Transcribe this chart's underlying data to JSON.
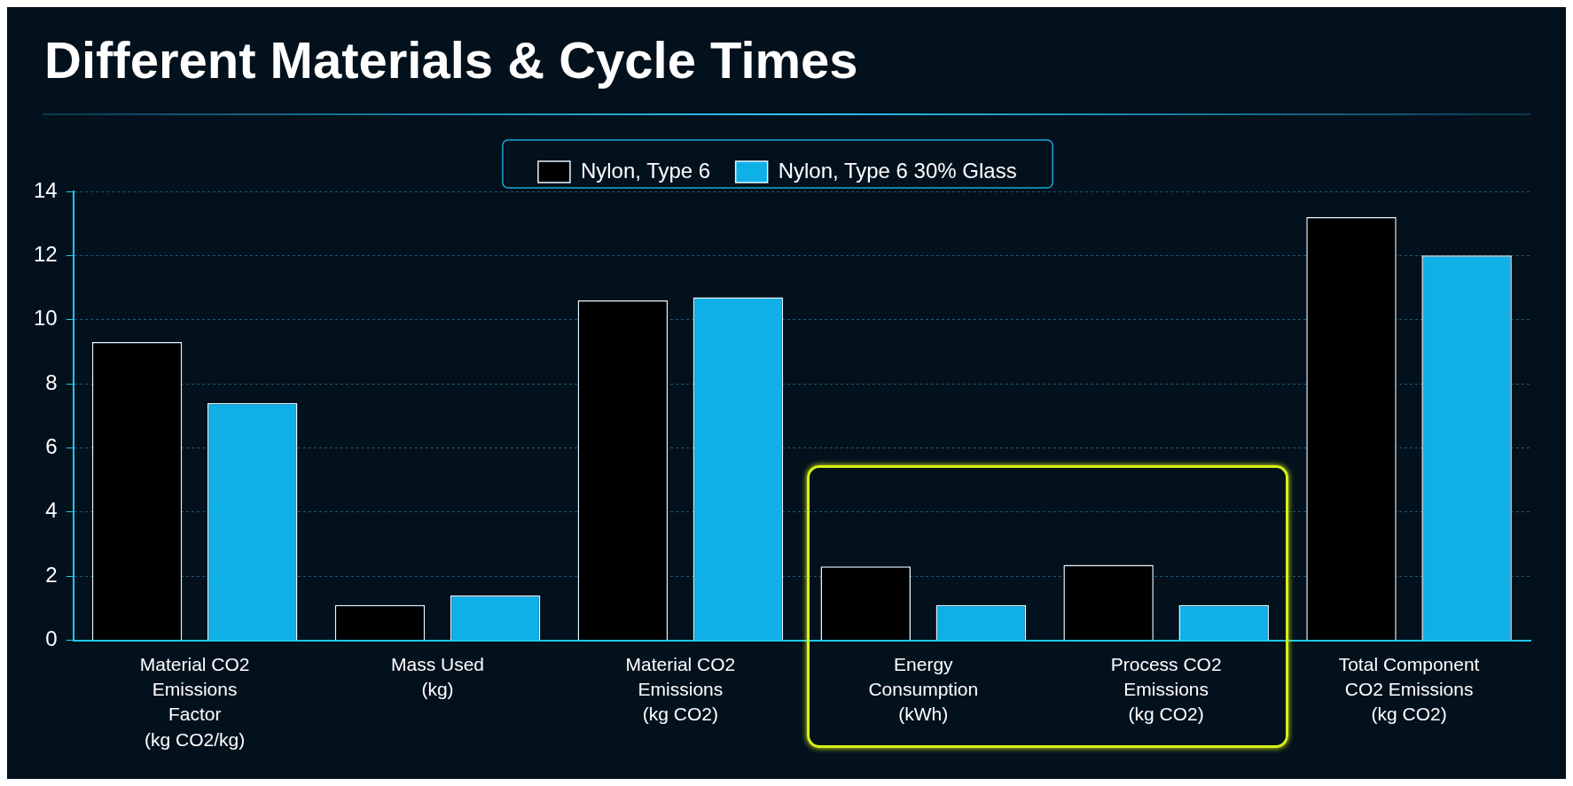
{
  "chart_data": {
    "type": "bar",
    "title": "Different Materials & Cycle Times",
    "categories": [
      "Material CO2 Emissions Factor (kg CO2/kg)",
      "Mass Used (kg)",
      "Material CO2 Emissions (kg CO2)",
      "Energy Consumption (kWh)",
      "Process CO2 Emissions (kg CO2)",
      "Total Component CO2 Emissions (kg CO2)"
    ],
    "series": [
      {
        "name": "Nylon, Type 6",
        "color": "#000000",
        "values": [
          9.3,
          1.1,
          10.6,
          2.3,
          2.35,
          13.2
        ]
      },
      {
        "name": "Nylon, Type 6 30% Glass",
        "color": "#0fb0e8",
        "values": [
          7.4,
          1.4,
          10.7,
          1.1,
          1.1,
          12.0
        ]
      }
    ],
    "ylim": [
      0,
      14
    ],
    "yticks": [
      0,
      2,
      4,
      6,
      8,
      10,
      12,
      14
    ],
    "grid": "y",
    "legend": "top"
  }
}
